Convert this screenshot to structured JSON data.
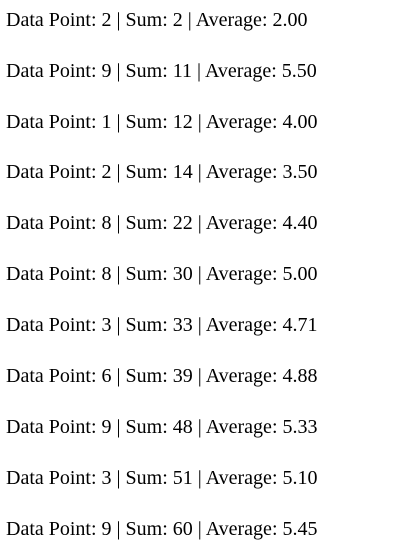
{
  "rows": [
    "Data Point: 2 | Sum: 2 | Average: 2.00",
    "Data Point: 9 | Sum: 11 | Average: 5.50",
    "Data Point: 1 | Sum: 12 | Average: 4.00",
    "Data Point: 2 | Sum: 14 | Average: 3.50",
    "Data Point: 8 | Sum: 22 | Average: 4.40",
    "Data Point: 8 | Sum: 30 | Average: 5.00",
    "Data Point: 3 | Sum: 33 | Average: 4.71",
    "Data Point: 6 | Sum: 39 | Average: 4.88",
    "Data Point: 9 | Sum: 48 | Average: 5.33",
    "Data Point: 3 | Sum: 51 | Average: 5.10",
    "Data Point: 9 | Sum: 60 | Average: 5.45"
  ]
}
